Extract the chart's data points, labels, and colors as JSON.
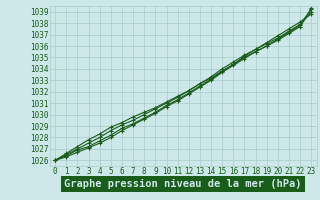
{
  "title": "Graphe pression niveau de la mer (hPa)",
  "background_color": "#cce8e8",
  "plot_bg": "#cce8e8",
  "grid_color": "#aacccc",
  "line_color": "#1a5c1a",
  "label_bg": "#1a5c1a",
  "label_fg": "#cce8e8",
  "xlim": [
    -0.5,
    23.5
  ],
  "ylim": [
    1025.5,
    1039.5
  ],
  "xticks": [
    0,
    1,
    2,
    3,
    4,
    5,
    6,
    7,
    8,
    9,
    10,
    11,
    12,
    13,
    14,
    15,
    16,
    17,
    18,
    19,
    20,
    21,
    22,
    23
  ],
  "yticks": [
    1026,
    1027,
    1028,
    1029,
    1030,
    1031,
    1032,
    1033,
    1034,
    1035,
    1036,
    1037,
    1038,
    1039
  ],
  "series": [
    [
      1026.0,
      1026.4,
      1026.9,
      1027.2,
      1027.7,
      1028.2,
      1028.8,
      1029.2,
      1029.7,
      1030.2,
      1030.8,
      1031.3,
      1031.9,
      1032.5,
      1033.1,
      1033.8,
      1034.4,
      1035.1,
      1035.7,
      1036.3,
      1036.9,
      1037.5,
      1038.1,
      1038.8
    ],
    [
      1026.0,
      1026.3,
      1026.7,
      1027.1,
      1027.5,
      1028.0,
      1028.6,
      1029.1,
      1029.6,
      1030.1,
      1030.7,
      1031.2,
      1031.8,
      1032.4,
      1033.0,
      1033.7,
      1034.3,
      1034.9,
      1035.5,
      1036.0,
      1036.6,
      1037.2,
      1037.8,
      1039.0
    ],
    [
      1026.0,
      1026.5,
      1027.0,
      1027.5,
      1028.0,
      1028.6,
      1029.1,
      1029.5,
      1030.0,
      1030.5,
      1031.0,
      1031.5,
      1032.1,
      1032.7,
      1033.3,
      1034.0,
      1034.6,
      1035.2,
      1035.7,
      1036.2,
      1036.7,
      1037.3,
      1037.9,
      1039.2
    ],
    [
      1026.0,
      1026.6,
      1027.2,
      1027.8,
      1028.3,
      1028.9,
      1029.3,
      1029.8,
      1030.2,
      1030.6,
      1031.1,
      1031.6,
      1032.1,
      1032.7,
      1033.2,
      1033.8,
      1034.4,
      1035.0,
      1035.5,
      1036.0,
      1036.5,
      1037.1,
      1037.7,
      1039.3
    ]
  ],
  "marker": "+",
  "markersize": 3.5,
  "linewidth": 0.8,
  "tick_fontsize": 5.5,
  "title_fontsize": 7.5,
  "figsize": [
    3.2,
    2.0
  ],
  "dpi": 100
}
